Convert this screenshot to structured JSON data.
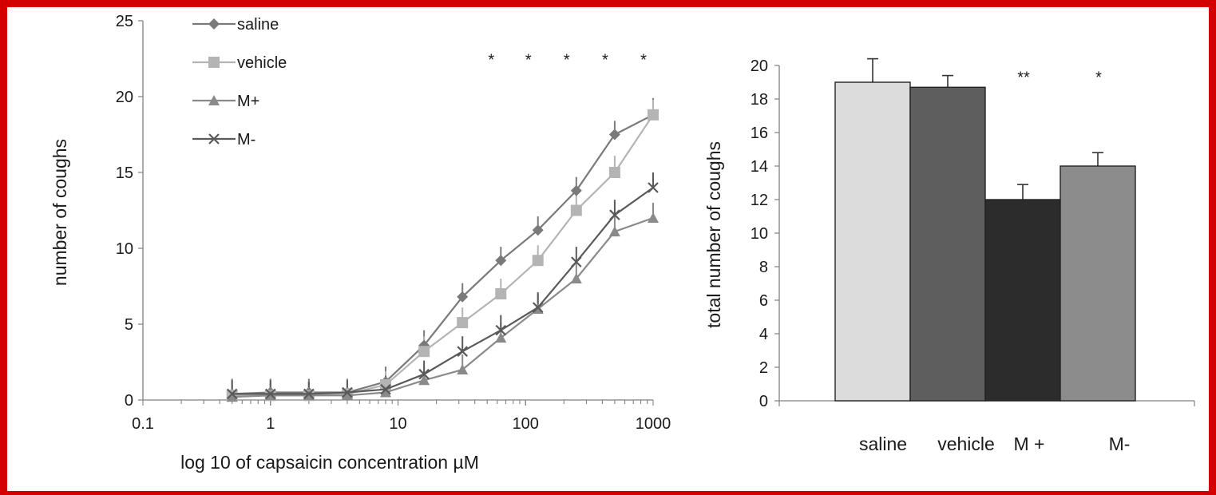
{
  "colors": {
    "frame": "#d40000",
    "axis": "#808080",
    "text": "#1a1a1a",
    "saline": "#7a7a7a",
    "vehicle": "#b4b4b4",
    "m_plus": "#8a8a8a",
    "m_minus": "#5a5a5a",
    "bar_saline": "#dcdcdc",
    "bar_vehicle": "#5e5e5e",
    "bar_m_plus": "#2c2c2c",
    "bar_m_minus": "#8c8c8c"
  },
  "chart_data": [
    {
      "type": "line",
      "title": "",
      "xlabel": "log 10 of capsaicin concentration µM",
      "ylabel": "number of coughs",
      "xscale": "log",
      "xlim": [
        0.1,
        1000
      ],
      "ylim": [
        0,
        25
      ],
      "xticks": [
        "0.1",
        "1",
        "10",
        "100",
        "1000"
      ],
      "yticks": [
        "0",
        "5",
        "10",
        "15",
        "20",
        "25"
      ],
      "legend_position": "top-left",
      "grid": false,
      "x": [
        0.5,
        1,
        2,
        4,
        8,
        16,
        32,
        64,
        125,
        250,
        500,
        1000
      ],
      "series": [
        {
          "name": "saline",
          "marker": "diamond",
          "values": [
            0.4,
            0.5,
            0.5,
            0.5,
            1.2,
            3.6,
            6.8,
            9.2,
            11.2,
            13.8,
            17.5,
            18.8
          ],
          "error": [
            1.0,
            0.9,
            0.9,
            0.9,
            1.0,
            1.0,
            0.9,
            0.9,
            0.9,
            0.9,
            0.9,
            1.1
          ]
        },
        {
          "name": "vehicle",
          "marker": "square",
          "values": [
            0.3,
            0.3,
            0.3,
            0.4,
            1.0,
            3.2,
            5.1,
            7.0,
            9.2,
            12.5,
            15.0,
            18.8
          ],
          "error": [
            0.8,
            0.8,
            0.8,
            0.8,
            0.9,
            1.0,
            1.0,
            1.0,
            1.0,
            1.0,
            1.1,
            1.0
          ]
        },
        {
          "name": "M+",
          "marker": "triangle",
          "values": [
            0.2,
            0.3,
            0.3,
            0.3,
            0.5,
            1.3,
            2.0,
            4.1,
            6.0,
            8.0,
            11.1,
            12.0
          ],
          "error": [
            0.8,
            0.8,
            0.8,
            0.8,
            0.9,
            0.9,
            1.0,
            1.0,
            1.0,
            1.1,
            1.1,
            1.0
          ]
        },
        {
          "name": "M-",
          "marker": "x",
          "values": [
            0.4,
            0.4,
            0.4,
            0.5,
            0.7,
            1.7,
            3.2,
            4.6,
            6.1,
            9.1,
            12.2,
            14.0
          ],
          "error": [
            0.9,
            0.9,
            0.8,
            0.8,
            0.9,
            0.9,
            1.0,
            1.0,
            1.0,
            1.0,
            1.0,
            1.0
          ]
        }
      ],
      "annotations": [
        {
          "text": "*",
          "x": 64,
          "y": 22.5
        },
        {
          "text": "*",
          "x": 125,
          "y": 22.5
        },
        {
          "text": "*",
          "x": 250,
          "y": 22.5
        },
        {
          "text": "*",
          "x": 500,
          "y": 22.5
        },
        {
          "text": "*",
          "x": 1000,
          "y": 22.5
        }
      ]
    },
    {
      "type": "bar",
      "title": "",
      "xlabel": "",
      "ylabel": "total number of coughs",
      "ylim": [
        0,
        20
      ],
      "yticks": [
        "0",
        "2",
        "4",
        "6",
        "8",
        "10",
        "12",
        "14",
        "16",
        "18",
        "20"
      ],
      "grid": false,
      "categories": [
        "saline",
        "vehicle",
        "M +",
        "M-"
      ],
      "values": [
        19.0,
        18.7,
        12.0,
        14.0
      ],
      "error": [
        1.4,
        0.7,
        0.9,
        0.8
      ],
      "significance": [
        "",
        "",
        "**",
        "*"
      ]
    }
  ]
}
